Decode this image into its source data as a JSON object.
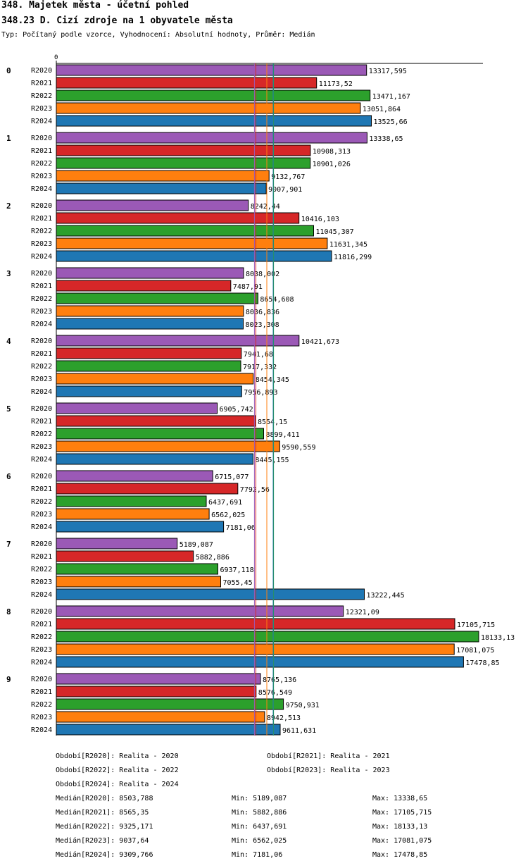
{
  "header": {
    "title": "348. Majetek města - účetní pohled",
    "subtitle": "348.23 D. Cizí zdroje na 1 obyvatele města",
    "info": "Typ: Počítaný podle vzorce, Vyhodnocení: Absolutní hodnoty, Průměr: Medián"
  },
  "colors": {
    "R2020": "#9b59b6",
    "R2021": "#d62728",
    "R2022": "#2ca02c",
    "R2023": "#ff7f0e",
    "R2024": "#1f77b4"
  },
  "chart_data": {
    "type": "bar",
    "orientation": "horizontal",
    "axis_zero_label": "0",
    "xlim": [
      0,
      18133.13
    ],
    "categories": [
      "0",
      "1",
      "2",
      "3",
      "4",
      "5",
      "6",
      "7",
      "8",
      "9"
    ],
    "series": [
      {
        "name": "R2020",
        "values": [
          13317.595,
          13338.65,
          8242.44,
          8038.002,
          10421.673,
          6905.742,
          6715.077,
          5189.087,
          12321.09,
          8765.136
        ],
        "labels": [
          "13317,595",
          "13338,65",
          "8242,44",
          "8038,002",
          "10421,673",
          "6905,742",
          "6715,077",
          "5189,087",
          "12321,09",
          "8765,136"
        ]
      },
      {
        "name": "R2021",
        "values": [
          11173.52,
          10908.313,
          10416.103,
          7487.91,
          7941.68,
          8554.15,
          7792.56,
          5882.886,
          17105.715,
          8576.549
        ],
        "labels": [
          "11173,52",
          "10908,313",
          "10416,103",
          "7487,91",
          "7941,68",
          "8554,15",
          "7792,56",
          "5882,886",
          "17105,715",
          "8576,549"
        ]
      },
      {
        "name": "R2022",
        "values": [
          13471.167,
          10901.026,
          11045.307,
          8654.608,
          7917.332,
          8899.411,
          6437.691,
          6937.118,
          18133.13,
          9750.931
        ],
        "labels": [
          "13471,167",
          "10901,026",
          "11045,307",
          "8654,608",
          "7917,332",
          "8899,411",
          "6437,691",
          "6937,118",
          "18133,13",
          "9750,931"
        ]
      },
      {
        "name": "R2023",
        "values": [
          13051.864,
          9132.767,
          11631.345,
          8036.836,
          8454.345,
          9590.559,
          6562.025,
          7055.45,
          17081.075,
          8942.513
        ],
        "labels": [
          "13051,864",
          "9132,767",
          "11631,345",
          "8036,836",
          "8454,345",
          "9590,559",
          "6562,025",
          "7055,45",
          "17081,075",
          "8942,513"
        ]
      },
      {
        "name": "R2024",
        "values": [
          13525.66,
          9007.901,
          11816.299,
          8023.308,
          7956.893,
          8445.155,
          7181.06,
          13222.445,
          17478.85,
          9611.631
        ],
        "labels": [
          "13525,66",
          "9007,901",
          "11816,299",
          "8023,308",
          "7956,893",
          "8445,155",
          "7181,06",
          "13222,445",
          "17478,85",
          "9611,631"
        ]
      }
    ],
    "medians": [
      8503.788,
      8565.35,
      9325.171,
      9037.64,
      9309.766
    ]
  },
  "legend": {
    "periods": [
      "Období[R2020]: Realita - 2020",
      "Období[R2021]: Realita - 2021",
      "Období[R2022]: Realita - 2022",
      "Období[R2023]: Realita - 2023",
      "Období[R2024]: Realita - 2024"
    ],
    "stats": [
      {
        "median": "Medián[R2020]: 8503,788",
        "min": "Min: 5189,087",
        "max": "Max: 13338,65"
      },
      {
        "median": "Medián[R2021]: 8565,35",
        "min": "Min: 5882,886",
        "max": "Max: 17105,715"
      },
      {
        "median": "Medián[R2022]: 9325,171",
        "min": "Min: 6437,691",
        "max": "Max: 18133,13"
      },
      {
        "median": "Medián[R2023]: 9037,64",
        "min": "Min: 6562,025",
        "max": "Max: 17081,075"
      },
      {
        "median": "Medián[R2024]: 9309,766",
        "min": "Min: 7181,06",
        "max": "Max: 17478,85"
      }
    ]
  }
}
